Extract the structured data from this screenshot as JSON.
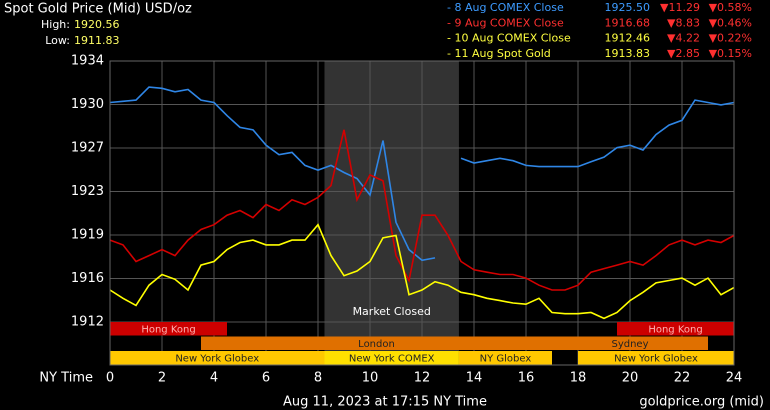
{
  "chart_data": {
    "type": "line",
    "title": "Spot Gold Price (Mid) USD/oz",
    "high_label": "High:",
    "high": "1920.56",
    "low_label": "Low:",
    "low": "1911.83",
    "legend_rows": [
      {
        "name": "- 8 Aug COMEX Close",
        "price": "1925.50",
        "change": "▼11.29",
        "pct": "▼0.58%",
        "color": "#3d9bff"
      },
      {
        "name": "- 9 Aug COMEX Close",
        "price": "1916.68",
        "change": "▼8.83",
        "pct": "▼0.46%",
        "color": "#ff3030"
      },
      {
        "name": "- 10 Aug COMEX Close",
        "price": "1912.46",
        "change": "▼4.22",
        "pct": "▼0.22%",
        "color": "#ffff40"
      },
      {
        "name": "- 11 Aug Spot Gold",
        "price": "1913.83",
        "change": "▼2.85",
        "pct": "▼0.15%",
        "color": "#ffff40"
      }
    ],
    "x_label": "NY Time",
    "x": [
      0,
      0.5,
      1,
      1.5,
      2,
      2.5,
      3,
      3.5,
      4,
      4.5,
      5,
      5.5,
      6,
      6.5,
      7,
      7.5,
      8,
      8.5,
      9,
      9.5,
      10,
      10.5,
      11,
      11.5,
      12,
      12.5,
      13,
      13.5,
      14,
      14.5,
      15,
      15.5,
      16,
      16.5,
      17,
      17.5,
      18,
      18.5,
      19,
      19.5,
      20,
      20.5,
      21,
      21.5,
      22,
      22.5,
      23,
      23.5,
      24
    ],
    "series": [
      {
        "color": "#2f86e6",
        "values": [
          1930.5,
          1930.6,
          1930.7,
          1931.8,
          1931.7,
          1931.4,
          1931.6,
          1930.7,
          1930.5,
          1929.4,
          1928.4,
          1928.2,
          1926.9,
          1926.1,
          1926.3,
          1925.2,
          1924.8,
          1925.2,
          1924.6,
          1924.1,
          1922.7,
          1927.3,
          1920.4,
          1918.1,
          1917.2,
          1917.4,
          null,
          1925.8,
          1925.4,
          1925.6,
          1925.8,
          1925.6,
          1925.2,
          1925.1,
          1925.1,
          1925.1,
          1925.1,
          1925.5,
          1925.9,
          1926.7,
          1926.9,
          1926.5,
          1927.8,
          1928.6,
          1929.0,
          1930.7,
          1930.5,
          1930.3,
          1930.5
        ]
      },
      {
        "color": "#d40000",
        "values": [
          1918.9,
          1918.5,
          1917.1,
          1917.6,
          1918.1,
          1917.6,
          1918.9,
          1919.8,
          1920.2,
          1921.0,
          1921.4,
          1920.8,
          1921.9,
          1921.4,
          1922.3,
          1921.9,
          1922.5,
          1923.5,
          1928.2,
          1922.3,
          1924.4,
          1923.9,
          1917.6,
          1915.5,
          1921.0,
          1921.0,
          1919.3,
          1917.1,
          1916.4,
          1916.2,
          1916.0,
          1916.0,
          1915.7,
          1915.1,
          1914.7,
          1914.7,
          1915.1,
          1916.2,
          1916.5,
          1916.8,
          1917.1,
          1916.8,
          1917.6,
          1918.5,
          1918.9,
          1918.5,
          1918.9,
          1918.7,
          1919.3
        ]
      },
      {
        "color": "#ffff00",
        "values": [
          1914.7,
          1914.0,
          1913.4,
          1915.1,
          1916.0,
          1915.6,
          1914.7,
          1916.8,
          1917.1,
          1918.1,
          1918.7,
          1918.9,
          1918.5,
          1918.5,
          1918.9,
          1918.9,
          1920.2,
          1917.6,
          1915.9,
          1916.3,
          1917.1,
          1919.1,
          1919.3,
          1914.3,
          1914.7,
          1915.4,
          1915.1,
          1914.5,
          1914.3,
          1914.0,
          1913.8,
          1913.6,
          1913.5,
          1914.0,
          1912.8,
          1912.7,
          1912.7,
          1912.8,
          1912.3,
          1912.8,
          1913.8,
          1914.5,
          1915.3,
          1915.5,
          1915.7,
          1915.1,
          1915.7,
          1914.3,
          1914.9
        ]
      }
    ],
    "xlim": [
      0,
      24
    ],
    "xticks": [
      0,
      2,
      4,
      6,
      8,
      10,
      12,
      14,
      16,
      18,
      20,
      22,
      24
    ],
    "ylim": [
      1912,
      1934
    ],
    "yticks": [
      1912,
      {
        "value": 1915.67,
        "label": "1916"
      },
      {
        "value": 1919.33,
        "label": "1919"
      },
      1923,
      {
        "value": 1926.67,
        "label": "1927"
      },
      {
        "value": 1930.33,
        "label": "1930"
      },
      1934
    ],
    "grid": true,
    "closed": {
      "label": "Market Closed",
      "start": 8.25,
      "end": 13.42
    },
    "sessions": [
      {
        "label": "Hong Kong",
        "start": 0,
        "end": 4.5,
        "row": 0,
        "color": "#cc0000"
      },
      {
        "label": "Hong Kong",
        "start": 19.5,
        "end": 24,
        "row": 0,
        "color": "#cc0000"
      },
      {
        "label": "London",
        "start": 3.5,
        "end": 17,
        "row": 1,
        "color": "#e07000"
      },
      {
        "label": "Sydney",
        "start": 17,
        "end": 23,
        "row": 1,
        "color": "#e07000"
      },
      {
        "label": "New York Globex",
        "start": 0,
        "end": 8.25,
        "row": 2,
        "color": "#ffc800"
      },
      {
        "label": "New York COMEX",
        "start": 8.25,
        "end": 13.42,
        "row": 2,
        "color": "#ffe000"
      },
      {
        "label": "NY Globex",
        "start": 13.42,
        "end": 17,
        "row": 2,
        "color": "#ffc800"
      },
      {
        "label": "New York Globex",
        "start": 18,
        "end": 24,
        "row": 2,
        "color": "#ffc800"
      }
    ],
    "footer": "Aug 11, 2023 at 17:15 NY Time",
    "source": "goldprice.org (mid)"
  }
}
